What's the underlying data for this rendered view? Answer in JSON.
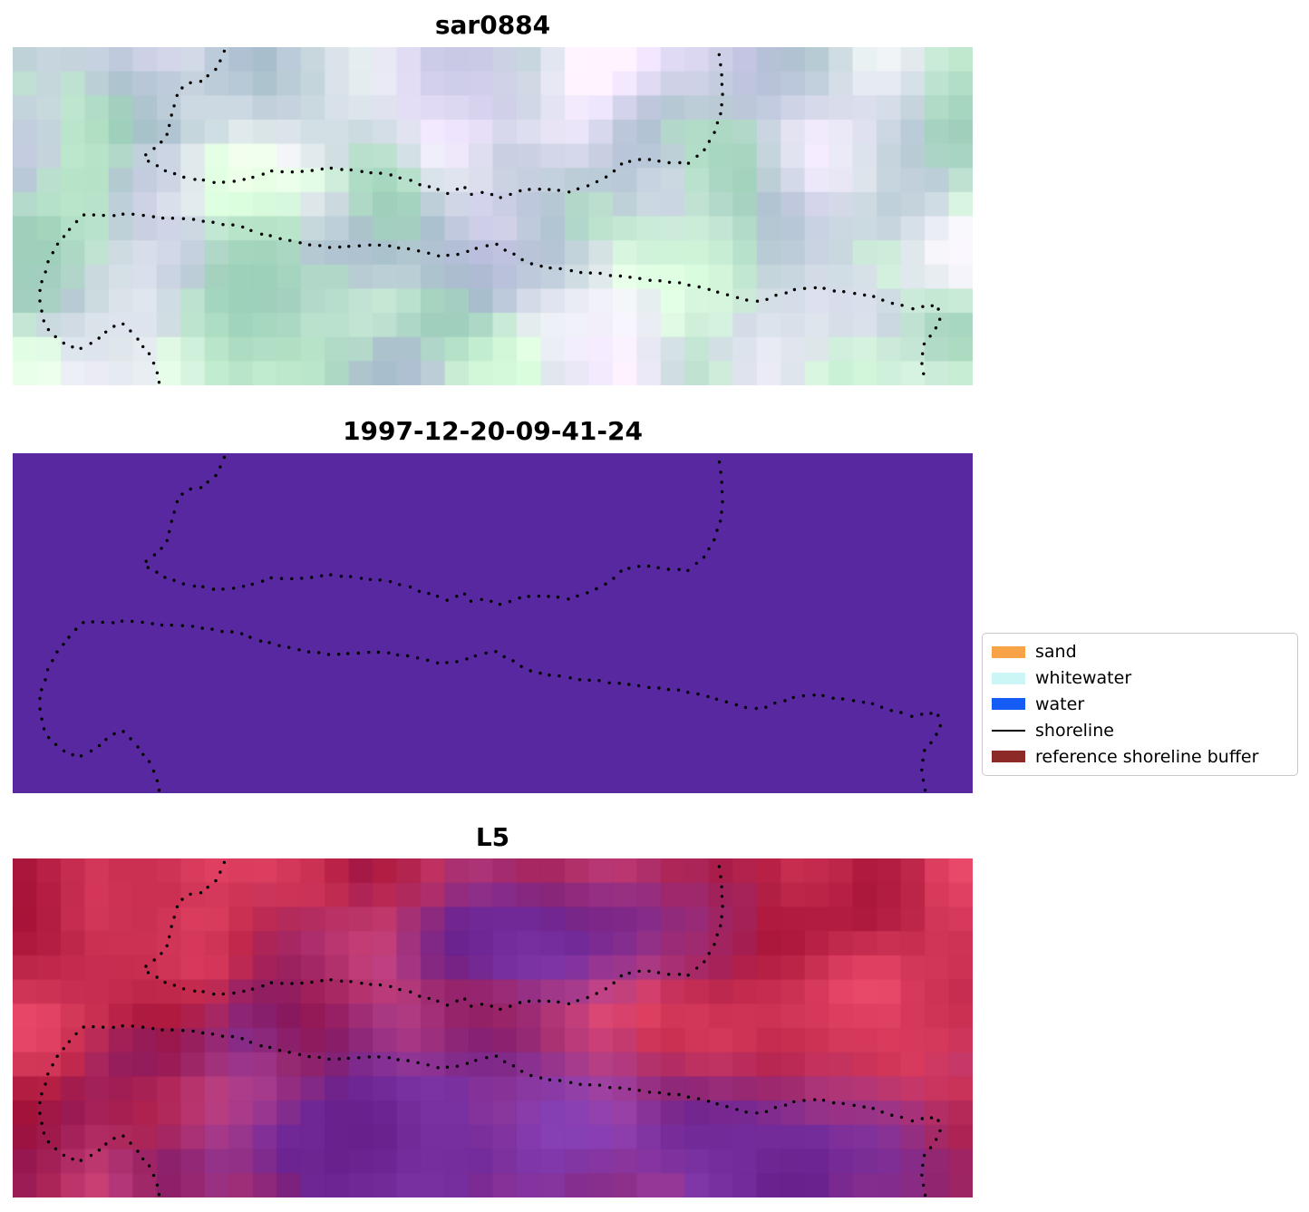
{
  "figure": {
    "background": "#ffffff"
  },
  "chart_data": {
    "type": "heatmap",
    "layout": "three stacked image panels sharing the same dotted shoreline overlay; legend to the right of the middle panel",
    "panels": [
      {
        "title": "sar0884",
        "kind": "sar-backscatter-image",
        "palette": [
          "#c7d7e4",
          "#d9d6ec",
          "#c9ecdf",
          "#f6fbfb"
        ]
      },
      {
        "title": "1997-12-20-09-41-24",
        "kind": "classified-image",
        "fill": "#57289f"
      },
      {
        "title": "L5",
        "kind": "landsat5-false-color-image",
        "palette": [
          "#c2204a",
          "#921132",
          "#d97292",
          "#7a3fae",
          "#50208f"
        ]
      }
    ],
    "legend": {
      "position": "right-of-middle-panel",
      "items": [
        {
          "label": "sand",
          "type": "patch",
          "color": "#f9a348"
        },
        {
          "label": "whitewater",
          "type": "patch",
          "color": "#ccf6f6"
        },
        {
          "label": "water",
          "type": "patch",
          "color": "#155cf4"
        },
        {
          "label": "shoreline",
          "type": "line",
          "color": "#000000"
        },
        {
          "label": "reference shoreline buffer",
          "type": "patch",
          "color": "#8b2a26"
        }
      ]
    },
    "shoreline": {
      "color": "#000000",
      "marker": "dot",
      "paths": [
        [
          [
            0.221,
            0.013
          ],
          [
            0.213,
            0.062
          ],
          [
            0.199,
            0.097
          ],
          [
            0.18,
            0.107
          ],
          [
            0.172,
            0.142
          ],
          [
            0.166,
            0.196
          ],
          [
            0.161,
            0.263
          ],
          [
            0.147,
            0.303
          ],
          [
            0.136,
            0.322
          ],
          [
            0.145,
            0.343
          ],
          [
            0.161,
            0.37
          ],
          [
            0.19,
            0.391
          ],
          [
            0.218,
            0.402
          ],
          [
            0.242,
            0.391
          ],
          [
            0.27,
            0.365
          ],
          [
            0.298,
            0.37
          ],
          [
            0.327,
            0.359
          ],
          [
            0.36,
            0.365
          ],
          [
            0.388,
            0.375
          ],
          [
            0.416,
            0.397
          ],
          [
            0.438,
            0.418
          ],
          [
            0.454,
            0.432
          ],
          [
            0.47,
            0.41
          ],
          [
            0.478,
            0.437
          ],
          [
            0.492,
            0.429
          ],
          [
            0.511,
            0.445
          ],
          [
            0.53,
            0.424
          ],
          [
            0.553,
            0.418
          ],
          [
            0.577,
            0.429
          ],
          [
            0.601,
            0.41
          ],
          [
            0.619,
            0.383
          ],
          [
            0.638,
            0.338
          ],
          [
            0.662,
            0.33
          ],
          [
            0.686,
            0.343
          ],
          [
            0.704,
            0.343
          ],
          [
            0.719,
            0.311
          ],
          [
            0.731,
            0.257
          ],
          [
            0.738,
            0.196
          ],
          [
            0.74,
            0.129
          ],
          [
            0.738,
            0.062
          ],
          [
            0.736,
            0.016
          ]
        ],
        [
          [
            0.152,
            0.992
          ],
          [
            0.15,
            0.96
          ],
          [
            0.147,
            0.933
          ],
          [
            0.141,
            0.901
          ],
          [
            0.132,
            0.871
          ],
          [
            0.124,
            0.842
          ],
          [
            0.117,
            0.82
          ],
          [
            0.11,
            0.82
          ],
          [
            0.1,
            0.834
          ],
          [
            0.091,
            0.858
          ],
          [
            0.079,
            0.882
          ],
          [
            0.067,
            0.893
          ],
          [
            0.055,
            0.879
          ],
          [
            0.043,
            0.855
          ],
          [
            0.036,
            0.826
          ],
          [
            0.03,
            0.791
          ],
          [
            0.028,
            0.745
          ],
          [
            0.03,
            0.697
          ],
          [
            0.035,
            0.651
          ],
          [
            0.042,
            0.606
          ],
          [
            0.051,
            0.566
          ],
          [
            0.062,
            0.528
          ],
          [
            0.077,
            0.493
          ],
          [
            0.1,
            0.499
          ],
          [
            0.128,
            0.493
          ],
          [
            0.157,
            0.504
          ],
          [
            0.185,
            0.509
          ],
          [
            0.213,
            0.52
          ],
          [
            0.237,
            0.531
          ],
          [
            0.256,
            0.552
          ],
          [
            0.275,
            0.563
          ],
          [
            0.298,
            0.579
          ],
          [
            0.322,
            0.59
          ],
          [
            0.35,
            0.59
          ],
          [
            0.374,
            0.584
          ],
          [
            0.398,
            0.59
          ],
          [
            0.421,
            0.603
          ],
          [
            0.445,
            0.617
          ],
          [
            0.468,
            0.611
          ],
          [
            0.487,
            0.59
          ],
          [
            0.504,
            0.584
          ],
          [
            0.52,
            0.611
          ],
          [
            0.539,
            0.638
          ],
          [
            0.563,
            0.654
          ],
          [
            0.591,
            0.665
          ],
          [
            0.619,
            0.673
          ],
          [
            0.648,
            0.681
          ],
          [
            0.671,
            0.692
          ],
          [
            0.695,
            0.697
          ],
          [
            0.719,
            0.713
          ],
          [
            0.742,
            0.732
          ],
          [
            0.761,
            0.745
          ],
          [
            0.78,
            0.751
          ],
          [
            0.799,
            0.732
          ],
          [
            0.818,
            0.713
          ],
          [
            0.841,
            0.713
          ],
          [
            0.865,
            0.724
          ],
          [
            0.884,
            0.732
          ],
          [
            0.898,
            0.74
          ],
          [
            0.917,
            0.756
          ],
          [
            0.936,
            0.772
          ],
          [
            0.952,
            0.767
          ],
          [
            0.964,
            0.764
          ],
          [
            0.967,
            0.799
          ],
          [
            0.959,
            0.839
          ],
          [
            0.95,
            0.874
          ],
          [
            0.946,
            0.92
          ],
          [
            0.948,
            0.96
          ],
          [
            0.95,
            0.992
          ]
        ]
      ]
    }
  }
}
